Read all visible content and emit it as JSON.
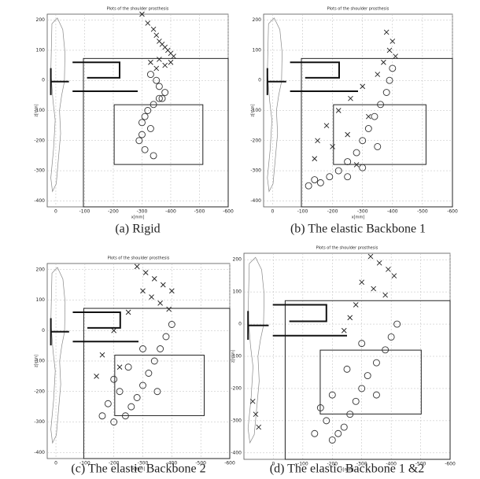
{
  "chart_data": [
    {
      "type": "scatter",
      "title": "Plots of the shoulder prosthesis",
      "x_label": "x[mm]",
      "y_label": "z[mm]",
      "caption": "(a) Rigid",
      "xlim": [
        30,
        -600
      ],
      "ylim": [
        -420,
        220
      ],
      "xticks": [
        0,
        -100,
        -200,
        -300,
        -400,
        -500,
        -600
      ],
      "yticks": [
        200,
        100,
        0,
        -100,
        -200,
        -300,
        -400
      ],
      "grid": true,
      "series": [
        {
          "marker": "x",
          "color": "#222222",
          "x": [
            -300,
            -320,
            -340,
            -350,
            -360,
            -370,
            -380,
            -390,
            -400,
            -410,
            -330,
            -360,
            -380,
            -400,
            -350
          ],
          "y": [
            220,
            190,
            170,
            150,
            130,
            120,
            110,
            100,
            90,
            80,
            60,
            70,
            50,
            60,
            40
          ]
        },
        {
          "marker": "o",
          "color": "#333333",
          "x": [
            -330,
            -350,
            -360,
            -380,
            -370,
            -340,
            -320,
            -310,
            -300,
            -330,
            -360,
            -300,
            -290,
            -310,
            -340
          ],
          "y": [
            20,
            0,
            -20,
            -40,
            -60,
            -80,
            -100,
            -120,
            -140,
            -160,
            -60,
            -180,
            -200,
            -230,
            -250
          ]
        }
      ]
    },
    {
      "type": "scatter",
      "title": "Plots of the shoulder prosthesis",
      "x_label": "x[mm]",
      "y_label": "z[mm]",
      "caption": "(b) The elastic Backbone 1",
      "xlim": [
        30,
        -600
      ],
      "ylim": [
        -420,
        220
      ],
      "xticks": [
        0,
        -100,
        -200,
        -300,
        -400,
        -500,
        -600
      ],
      "yticks": [
        200,
        100,
        0,
        -100,
        -200,
        -300,
        -400
      ],
      "grid": true,
      "series": [
        {
          "marker": "x",
          "color": "#222222",
          "x": [
            -380,
            -400,
            -390,
            -410,
            -370,
            -350,
            -300,
            -260,
            -220,
            -180,
            -150,
            -140,
            -200,
            -250,
            -320,
            -280
          ],
          "y": [
            160,
            130,
            100,
            80,
            60,
            20,
            -20,
            -60,
            -100,
            -150,
            -200,
            -260,
            -220,
            -180,
            -120,
            -280
          ]
        },
        {
          "marker": "o",
          "color": "#333333",
          "x": [
            -400,
            -390,
            -380,
            -360,
            -340,
            -320,
            -300,
            -280,
            -250,
            -220,
            -190,
            -160,
            -140,
            -120,
            -350,
            -300,
            -250
          ],
          "y": [
            40,
            0,
            -40,
            -80,
            -120,
            -160,
            -200,
            -240,
            -270,
            -300,
            -320,
            -340,
            -330,
            -350,
            -220,
            -290,
            -320
          ]
        }
      ]
    },
    {
      "type": "scatter",
      "title": "Plots of the shoulder prosthesis",
      "x_label": "x[mm]",
      "y_label": "z[mm]",
      "caption": "(c) The elastic Backbone 2",
      "xlim": [
        30,
        -600
      ],
      "ylim": [
        -420,
        220
      ],
      "xticks": [
        0,
        -100,
        -200,
        -300,
        -400,
        -500,
        -600
      ],
      "yticks": [
        200,
        100,
        0,
        -100,
        -200,
        -300,
        -400
      ],
      "grid": true,
      "series": [
        {
          "marker": "x",
          "color": "#222222",
          "x": [
            -280,
            -310,
            -340,
            -370,
            -400,
            -300,
            -330,
            -360,
            -390,
            -250,
            -200,
            -160,
            -140,
            -220
          ],
          "y": [
            210,
            190,
            170,
            150,
            130,
            130,
            110,
            90,
            70,
            60,
            0,
            -80,
            -150,
            -120
          ]
        },
        {
          "marker": "o",
          "color": "#333333",
          "x": [
            -400,
            -380,
            -360,
            -340,
            -320,
            -300,
            -280,
            -260,
            -240,
            -220,
            -200,
            -180,
            -160,
            -300,
            -350,
            -250,
            -200
          ],
          "y": [
            20,
            -20,
            -60,
            -100,
            -140,
            -180,
            -220,
            -250,
            -280,
            -200,
            -160,
            -240,
            -280,
            -60,
            -200,
            -120,
            -300
          ]
        }
      ]
    },
    {
      "type": "scatter",
      "title": "Plots of the shoulder prosthesis",
      "x_label": "x[mm]",
      "y_label": "z[mm]",
      "caption": "(d) The elastic Backbone 1 &2",
      "xlim": [
        100,
        -600
      ],
      "ylim": [
        -420,
        220
      ],
      "xticks": [
        0,
        -100,
        -200,
        -300,
        -400,
        -500,
        -600
      ],
      "yticks": [
        200,
        100,
        0,
        -100,
        -200,
        -300,
        -400
      ],
      "grid": true,
      "series": [
        {
          "marker": "x",
          "color": "#222222",
          "x": [
            -330,
            -360,
            -390,
            -410,
            -300,
            -340,
            -380,
            -280,
            -260,
            -240,
            70,
            60,
            50
          ],
          "y": [
            210,
            190,
            170,
            150,
            130,
            110,
            90,
            60,
            20,
            -20,
            -240,
            -280,
            -320
          ]
        },
        {
          "marker": "o",
          "color": "#333333",
          "x": [
            -420,
            -400,
            -380,
            -350,
            -320,
            -300,
            -280,
            -260,
            -240,
            -220,
            -200,
            -180,
            -160,
            -140,
            -300,
            -350,
            -250,
            -200
          ],
          "y": [
            0,
            -40,
            -80,
            -120,
            -160,
            -200,
            -240,
            -280,
            -320,
            -340,
            -360,
            -300,
            -260,
            -340,
            -60,
            -220,
            -140,
            -220
          ]
        }
      ]
    }
  ]
}
